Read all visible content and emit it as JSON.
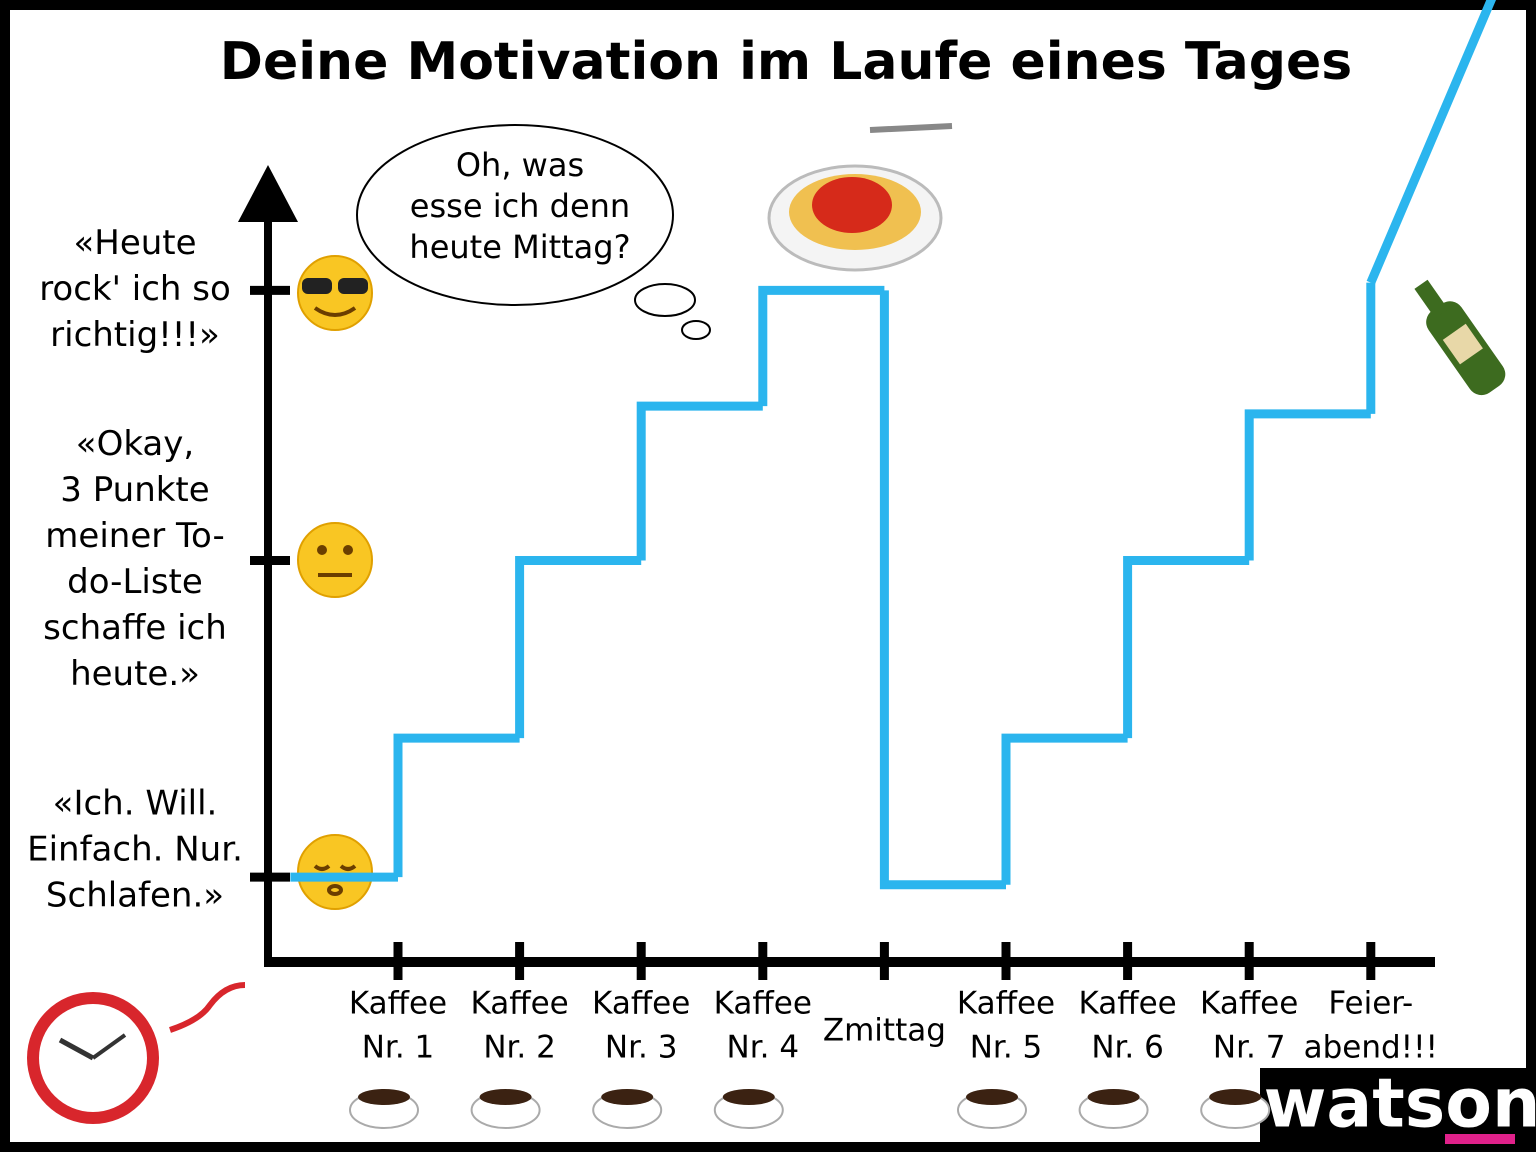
{
  "chart_data": {
    "type": "step",
    "title": "Deine Motivation im Laufe eines Tages",
    "categories": [
      null,
      [
        "Kaffee",
        "Nr. 1"
      ],
      [
        "Kaffee",
        "Nr. 2"
      ],
      [
        "Kaffee",
        "Nr. 3"
      ],
      [
        "Kaffee",
        "Nr. 4"
      ],
      [
        "Zmittag"
      ],
      [
        "Kaffee",
        "Nr. 5"
      ],
      [
        "Kaffee",
        "Nr. 6"
      ],
      [
        "Kaffee",
        "Nr. 7"
      ],
      [
        "Feier-",
        "abend!!!"
      ],
      null
    ],
    "values": [
      11,
      29,
      52,
      72,
      87,
      10,
      29,
      52,
      71,
      88,
      125
    ],
    "color": "#2bb5ee",
    "ylim": [
      0,
      100
    ],
    "yticks": [
      {
        "value": 11,
        "label": [
          "«Ich. Will.",
          "Einfach. Nur.",
          "Schlafen.»"
        ]
      },
      {
        "value": 52,
        "label": [
          "«Okay,",
          "3 Punkte",
          "meiner To-",
          "do-Liste",
          "schaffe ich",
          "heute.»"
        ]
      },
      {
        "value": 87,
        "label": [
          "«Heute",
          "rock' ich so",
          "richtig!!!»"
        ]
      }
    ],
    "annotations": [
      {
        "text": [
          "Oh, was",
          "esse ich denn",
          "heute Mittag?"
        ]
      }
    ],
    "logo": "watson"
  }
}
